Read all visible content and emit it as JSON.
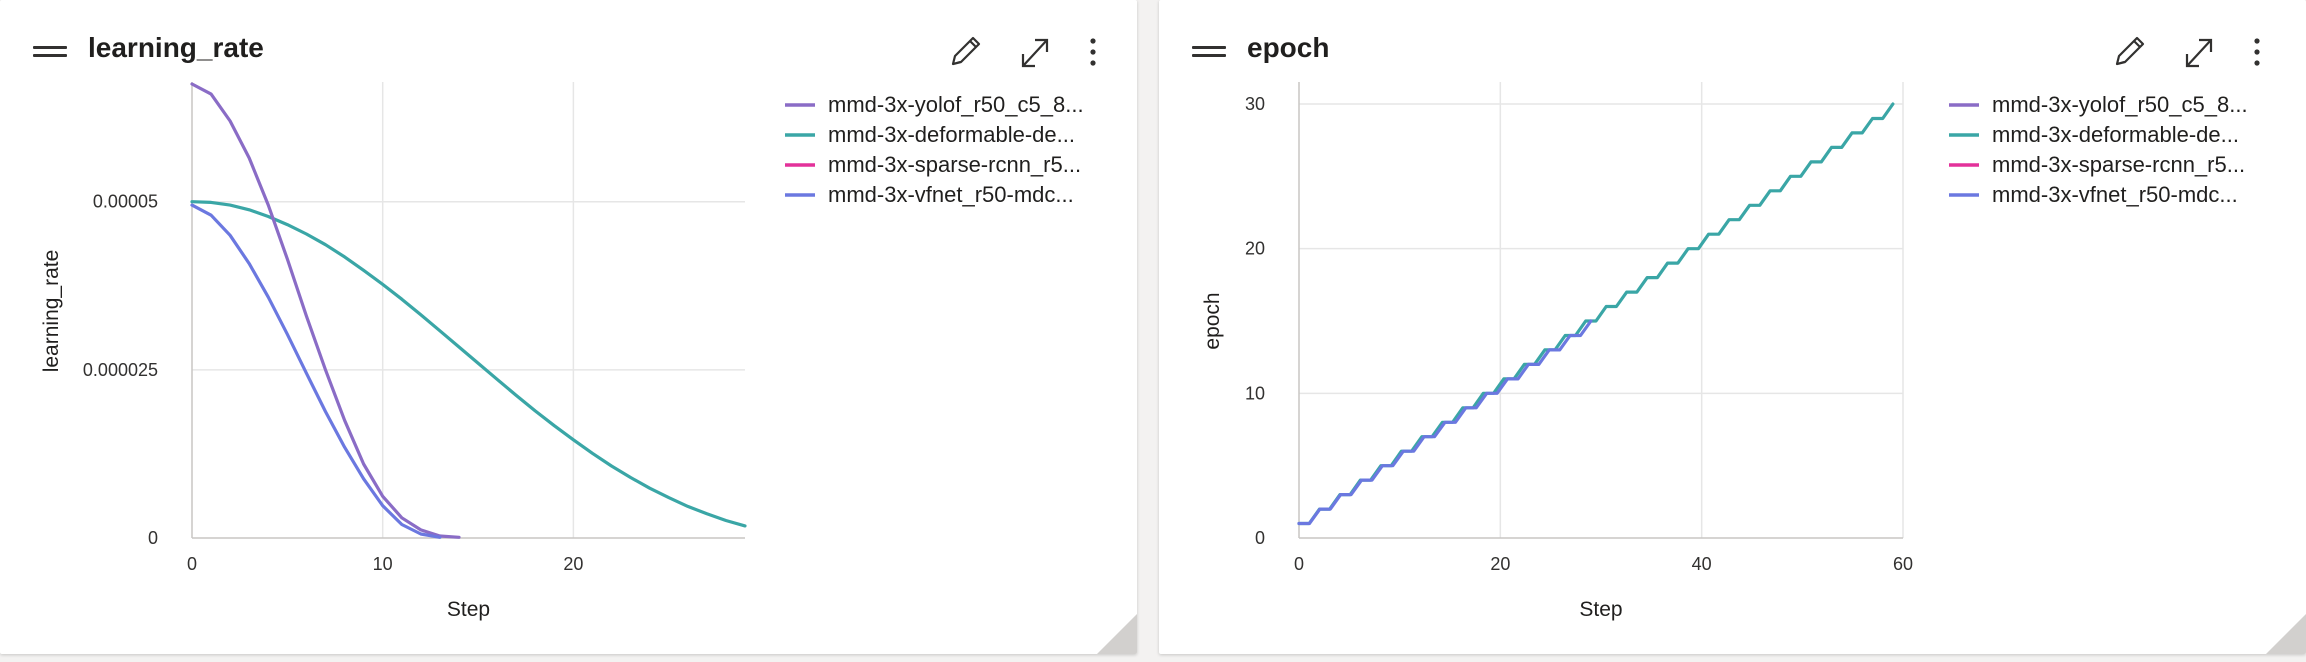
{
  "panels": [
    {
      "title": "learning_rate",
      "actions": {
        "edit_icon": "pencil-icon",
        "expand_icon": "expand-icon",
        "more_icon": "more-vertical-icon"
      }
    },
    {
      "title": "epoch",
      "actions": {
        "edit_icon": "pencil-icon",
        "expand_icon": "expand-icon",
        "more_icon": "more-vertical-icon"
      }
    }
  ],
  "colors": {
    "yolof": "#8a6cc6",
    "deformable": "#3aa6a6",
    "sparse": "#e3319a",
    "vfnet": "#6b78e0",
    "grid": "#e6e6e6",
    "axis": "#c8c6c4"
  },
  "chart_data": [
    {
      "type": "line",
      "title": "learning_rate",
      "xlabel": "Step",
      "ylabel": "learning_rate",
      "xlim": [
        0,
        29
      ],
      "ylim": [
        0,
        6.75e-05
      ],
      "xticks": [
        0,
        10,
        20
      ],
      "xtick_labels": [
        "0",
        "10",
        "20"
      ],
      "yticks": [
        0,
        2.5e-05,
        5e-05
      ],
      "ytick_labels": [
        "0",
        "0.000025",
        "0.00005"
      ],
      "grid": true,
      "legend_position": "top-right",
      "legend": [
        "mmd-3x-yolof_r50_c5_8...",
        "mmd-3x-deformable-de...",
        "mmd-3x-sparse-rcnn_r5...",
        "mmd-3x-vfnet_r50-mdc..."
      ],
      "series": [
        {
          "name": "mmd-3x-yolof_r50_c5_8...",
          "color": "#8a6cc6",
          "x": [
            0,
            1,
            2,
            3,
            4,
            5,
            6,
            7,
            8,
            9,
            10,
            11,
            12,
            13,
            14
          ],
          "y": [
            6.75e-05,
            6.6e-05,
            6.2e-05,
            5.65e-05,
            4.95e-05,
            4.15e-05,
            3.3e-05,
            2.5e-05,
            1.75e-05,
            1.1e-05,
            6.2e-06,
            3e-06,
            1.2e-06,
            3e-07,
            1e-07
          ]
        },
        {
          "name": "mmd-3x-deformable-de...",
          "color": "#3aa6a6",
          "x": [
            0,
            1,
            2,
            3,
            4,
            5,
            6,
            7,
            8,
            9,
            10,
            11,
            12,
            13,
            14,
            15,
            16,
            17,
            18,
            19,
            20,
            21,
            22,
            23,
            24,
            25,
            26,
            27,
            28,
            29
          ],
          "y": [
            5e-05,
            4.99e-05,
            4.95e-05,
            4.88e-05,
            4.78e-05,
            4.66e-05,
            4.52e-05,
            4.36e-05,
            4.18e-05,
            3.98e-05,
            3.77e-05,
            3.55e-05,
            3.32e-05,
            3.08e-05,
            2.84e-05,
            2.6e-05,
            2.36e-05,
            2.12e-05,
            1.89e-05,
            1.67e-05,
            1.46e-05,
            1.26e-05,
            1.07e-05,
            9e-06,
            7.4e-06,
            6e-06,
            4.7e-06,
            3.6e-06,
            2.6e-06,
            1.8e-06
          ]
        },
        {
          "name": "mmd-3x-sparse-rcnn_r5...",
          "color": "#e3319a",
          "x": [],
          "y": []
        },
        {
          "name": "mmd-3x-vfnet_r50-mdc...",
          "color": "#6b78e0",
          "x": [
            0,
            1,
            2,
            3,
            4,
            5,
            6,
            7,
            8,
            9,
            10,
            11,
            12,
            13
          ],
          "y": [
            4.95e-05,
            4.8e-05,
            4.5e-05,
            4.08e-05,
            3.58e-05,
            3.03e-05,
            2.45e-05,
            1.88e-05,
            1.35e-05,
            8.8e-06,
            4.8e-06,
            2e-06,
            6e-07,
            1e-07
          ]
        }
      ]
    },
    {
      "type": "line",
      "title": "epoch",
      "xlabel": "Step",
      "ylabel": "epoch",
      "xlim": [
        0,
        60
      ],
      "ylim": [
        0,
        30
      ],
      "xticks": [
        0,
        20,
        40,
        60
      ],
      "xtick_labels": [
        "0",
        "20",
        "40",
        "60"
      ],
      "yticks": [
        0,
        10,
        20,
        30
      ],
      "ytick_labels": [
        "0",
        "10",
        "20",
        "30"
      ],
      "grid": true,
      "legend_position": "top-right",
      "legend": [
        "mmd-3x-yolof_r50_c5_8...",
        "mmd-3x-deformable-de...",
        "mmd-3x-sparse-rcnn_r5...",
        "mmd-3x-vfnet_r50-mdc..."
      ],
      "series": [
        {
          "name": "mmd-3x-yolof_r50_c5_8...",
          "color": "#8a6cc6",
          "x": [],
          "y": []
        },
        {
          "name": "mmd-3x-deformable-de...",
          "color": "#3aa6a6",
          "x": [
            0,
            59
          ],
          "y": [
            1,
            30
          ],
          "staircase": true
        },
        {
          "name": "mmd-3x-sparse-rcnn_r5...",
          "color": "#e3319a",
          "x": [],
          "y": []
        },
        {
          "name": "mmd-3x-vfnet_r50-mdc...",
          "color": "#6b78e0",
          "x": [
            0,
            29
          ],
          "y": [
            1,
            15
          ],
          "staircase": true
        }
      ]
    }
  ]
}
